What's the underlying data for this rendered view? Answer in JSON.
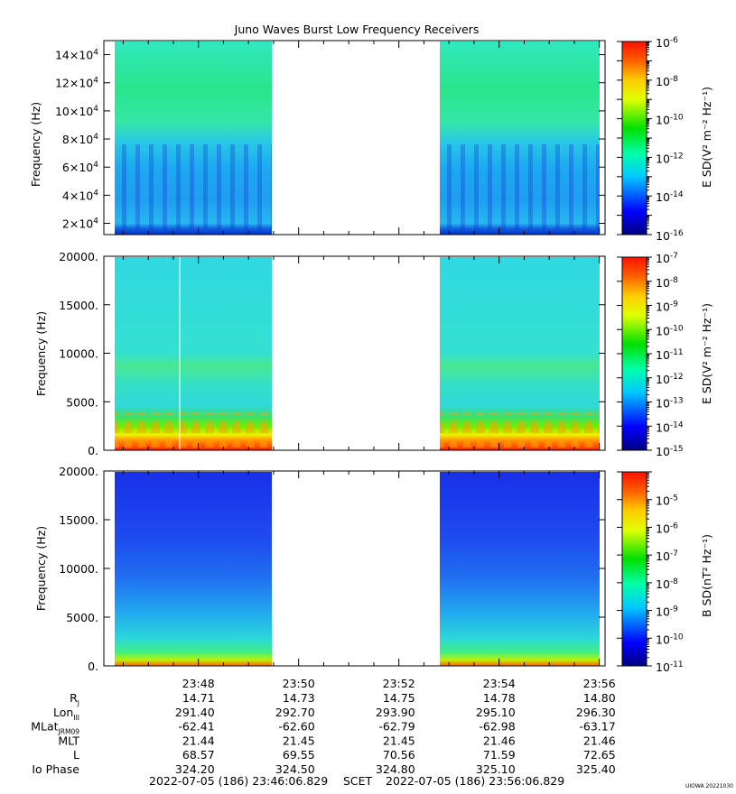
{
  "chart_data": [
    {
      "type": "heatmap",
      "title": "Juno Waves Burst Low Frequency Receivers",
      "ylabel": "Frequency (Hz)",
      "ylim": [
        12000,
        150000
      ],
      "yticks": [
        {
          "v": 20000,
          "m": "2×10",
          "e": "4"
        },
        {
          "v": 40000,
          "m": "4×10",
          "e": "4"
        },
        {
          "v": 60000,
          "m": "6×10",
          "e": "4"
        },
        {
          "v": 80000,
          "m": "8×10",
          "e": "4"
        },
        {
          "v": 100000,
          "m": "10×10",
          "e": "4"
        },
        {
          "v": 120000,
          "m": "12×10",
          "e": "4"
        },
        {
          "v": 140000,
          "m": "14×10",
          "e": "4"
        }
      ],
      "data_gap": [
        "23:49:00",
        "23:52:50"
      ],
      "colorbar": {
        "label": "E SD(V² m⁻² Hz⁻¹)",
        "range": [
          1e-16,
          1e-06
        ],
        "scale": "log",
        "ticks": [
          {
            "v": -6,
            "m": "10",
            "e": "-6"
          },
          {
            "v": -8,
            "m": "10",
            "e": "-8"
          },
          {
            "v": -10,
            "m": "10",
            "e": "-10"
          },
          {
            "v": -12,
            "m": "10",
            "e": "-12"
          },
          {
            "v": -14,
            "m": "10",
            "e": "-14"
          },
          {
            "v": -16,
            "m": "10",
            "e": "-16"
          }
        ]
      }
    },
    {
      "type": "heatmap",
      "ylabel": "Frequency (Hz)",
      "ylim": [
        0,
        20000
      ],
      "yticks": [
        {
          "v": 0,
          "m": "0."
        },
        {
          "v": 5000,
          "m": "5000."
        },
        {
          "v": 10000,
          "m": "10000."
        },
        {
          "v": 15000,
          "m": "15000."
        },
        {
          "v": 20000,
          "m": "20000."
        }
      ],
      "data_gap": [
        "23:49:00",
        "23:52:50"
      ],
      "colorbar": {
        "label": "E SD(V² m⁻² Hz⁻¹)",
        "range": [
          1e-15,
          1e-07
        ],
        "scale": "log",
        "ticks": [
          {
            "v": -7,
            "m": "10",
            "e": "-7"
          },
          {
            "v": -8,
            "m": "10",
            "e": "-8"
          },
          {
            "v": -9,
            "m": "10",
            "e": "-9"
          },
          {
            "v": -10,
            "m": "10",
            "e": "-10"
          },
          {
            "v": -11,
            "m": "10",
            "e": "-11"
          },
          {
            "v": -12,
            "m": "10",
            "e": "-12"
          },
          {
            "v": -13,
            "m": "10",
            "e": "-13"
          },
          {
            "v": -14,
            "m": "10",
            "e": "-14"
          },
          {
            "v": -15,
            "m": "10",
            "e": "-15"
          }
        ]
      }
    },
    {
      "type": "heatmap",
      "ylabel": "Frequency (Hz)",
      "ylim": [
        0,
        20000
      ],
      "yticks": [
        {
          "v": 0,
          "m": "0."
        },
        {
          "v": 5000,
          "m": "5000."
        },
        {
          "v": 10000,
          "m": "10000."
        },
        {
          "v": 15000,
          "m": "15000."
        },
        {
          "v": 20000,
          "m": "20000."
        }
      ],
      "data_gap": [
        "23:49:00",
        "23:52:50"
      ],
      "colorbar": {
        "label": "B SD(nT² Hz⁻¹)",
        "range": [
          1e-11,
          0.0001
        ],
        "scale": "log",
        "ticks": [
          {
            "v": -5,
            "m": "10",
            "e": "-5"
          },
          {
            "v": -6,
            "m": "10",
            "e": "-6"
          },
          {
            "v": -7,
            "m": "10",
            "e": "-7"
          },
          {
            "v": -8,
            "m": "10",
            "e": "-8"
          },
          {
            "v": -9,
            "m": "10",
            "e": "-9"
          },
          {
            "v": -10,
            "m": "10",
            "e": "-10"
          },
          {
            "v": -11,
            "m": "10",
            "e": "-11"
          }
        ]
      }
    }
  ],
  "xaxis": {
    "range": [
      "23:46:06.829",
      "23:56:06.829"
    ],
    "ticks": [
      "23:48",
      "23:50",
      "23:52",
      "23:54",
      "23:56"
    ]
  },
  "ephemeris": [
    {
      "label": "R",
      "sub": "J",
      "values": [
        "14.71",
        "14.73",
        "14.75",
        "14.78",
        "14.80"
      ]
    },
    {
      "label": "Lon",
      "sub": "III",
      "values": [
        "291.40",
        "292.70",
        "293.90",
        "295.10",
        "296.30"
      ]
    },
    {
      "label": "MLat",
      "sub": "JRM09",
      "values": [
        "-62.41",
        "-62.60",
        "-62.79",
        "-62.98",
        "-63.17"
      ]
    },
    {
      "label": "MLT",
      "sub": "",
      "values": [
        "21.44",
        "21.45",
        "21.45",
        "21.46",
        "21.46"
      ]
    },
    {
      "label": "L",
      "sub": "",
      "values": [
        "68.57",
        "69.55",
        "70.56",
        "71.59",
        "72.65"
      ]
    },
    {
      "label": "Io Phase",
      "sub": "",
      "values": [
        "324.20",
        "324.50",
        "324.80",
        "325.10",
        "325.40"
      ]
    }
  ],
  "footer": {
    "start": "2022-07-05 (186) 23:46:06.829",
    "scet": "SCET",
    "end": "2022-07-05 (186) 23:56:06.829",
    "credit": "UIOWA 20221030"
  }
}
